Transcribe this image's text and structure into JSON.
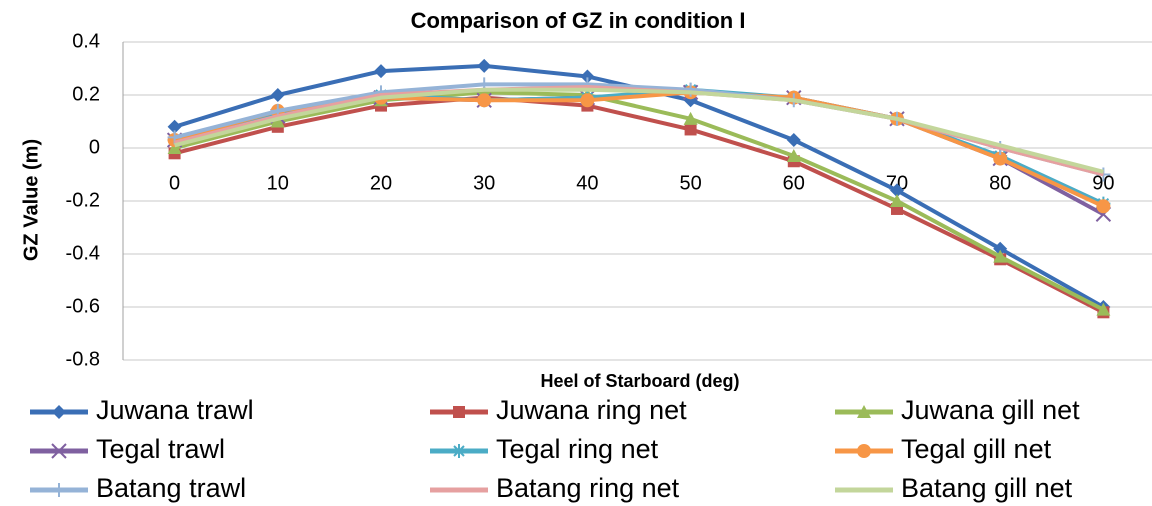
{
  "chart_data": {
    "type": "line",
    "title": "Comparison of GZ in condition I",
    "x_label": "Heel of Starboard (deg)",
    "y_label": "GZ Value (m)",
    "categories": [
      "0",
      "10",
      "20",
      "30",
      "40",
      "50",
      "60",
      "70",
      "80",
      "90"
    ],
    "ylim": [
      -0.8,
      0.4
    ],
    "yticks": [
      -0.8,
      -0.6,
      -0.4,
      -0.2,
      0,
      0.2,
      0.4
    ],
    "grid": true,
    "legend": "bottom",
    "series": [
      {
        "name": "Juwana trawl",
        "color": "#3a6eb5",
        "marker": "diamond",
        "values": [
          0.08,
          0.2,
          0.29,
          0.31,
          0.27,
          0.18,
          0.03,
          -0.16,
          -0.38,
          -0.6
        ]
      },
      {
        "name": "Juwana ring net",
        "color": "#c0504d",
        "marker": "square",
        "values": [
          -0.02,
          0.08,
          0.16,
          0.19,
          0.16,
          0.07,
          -0.05,
          -0.23,
          -0.42,
          -0.62
        ]
      },
      {
        "name": "Juwana gill net",
        "color": "#9bbb59",
        "marker": "triangle",
        "values": [
          0.0,
          0.1,
          0.18,
          0.21,
          0.2,
          0.11,
          -0.03,
          -0.2,
          -0.41,
          -0.61
        ]
      },
      {
        "name": "Tegal trawl",
        "color": "#7f60a0",
        "marker": "x",
        "values": [
          0.03,
          0.12,
          0.19,
          0.18,
          0.19,
          0.21,
          0.19,
          0.11,
          -0.04,
          -0.25
        ]
      },
      {
        "name": "Tegal ring net",
        "color": "#4bacc6",
        "marker": "star",
        "values": [
          0.03,
          0.13,
          0.2,
          0.18,
          0.19,
          0.22,
          0.19,
          0.11,
          -0.03,
          -0.21
        ]
      },
      {
        "name": "Tegal gill net",
        "color": "#f79646",
        "marker": "circle",
        "values": [
          0.03,
          0.14,
          0.19,
          0.18,
          0.18,
          0.21,
          0.19,
          0.11,
          -0.04,
          -0.22
        ]
      },
      {
        "name": "Batang trawl",
        "color": "#95b3d7",
        "marker": "plus",
        "values": [
          0.04,
          0.14,
          0.21,
          0.24,
          0.24,
          0.22,
          0.18,
          0.11,
          0.0,
          -0.1
        ]
      },
      {
        "name": "Batang ring net",
        "color": "#e6a0a0",
        "marker": "none",
        "values": [
          0.02,
          0.12,
          0.2,
          0.22,
          0.23,
          0.21,
          0.18,
          0.11,
          0.0,
          -0.1
        ]
      },
      {
        "name": "Batang gill net",
        "color": "#c3d69b",
        "marker": "none",
        "values": [
          0.01,
          0.11,
          0.19,
          0.22,
          0.22,
          0.21,
          0.18,
          0.11,
          0.01,
          -0.09
        ]
      }
    ]
  }
}
